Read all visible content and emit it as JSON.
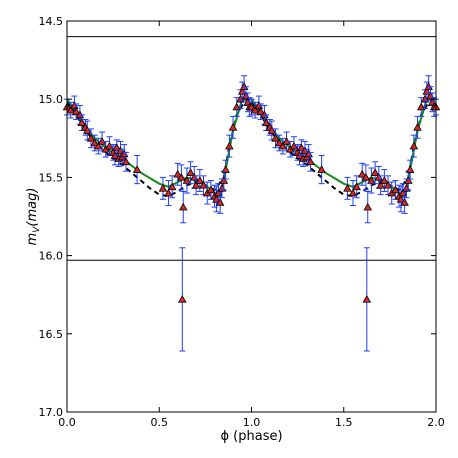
{
  "chart_data": {
    "type": "scatter",
    "xlabel": "ϕ (phase)",
    "ylabel_main": "m",
    "ylabel_sub": "V",
    "ylabel_paren": "(mag)",
    "xlim": [
      0.0,
      2.0
    ],
    "ylim": [
      14.5,
      17.0
    ],
    "y_inverted": true,
    "x_ticks": [
      "0.0",
      "0.5",
      "1.0",
      "1.5",
      "2.0"
    ],
    "x_tick_values": [
      0.0,
      0.5,
      1.0,
      1.5,
      2.0
    ],
    "y_ticks": [
      "14.5",
      "15.0",
      "15.5",
      "16.0",
      "16.5",
      "17.0"
    ],
    "y_tick_values": [
      14.5,
      15.0,
      15.5,
      16.0,
      16.5,
      17.0
    ],
    "hlines": [
      14.6,
      16.03
    ],
    "grid": false,
    "colors": {
      "marker_fill": "#d62728",
      "marker_edge": "#000000",
      "errorbar": "#1f3fff",
      "fit_line": "#1a8a1a",
      "model_line": "#000000"
    },
    "observations": {
      "x": [
        0.0,
        0.02,
        0.04,
        0.05,
        0.07,
        0.08,
        0.1,
        0.11,
        0.13,
        0.15,
        0.17,
        0.19,
        0.21,
        0.23,
        0.25,
        0.26,
        0.27,
        0.28,
        0.29,
        0.3,
        0.31,
        0.32,
        0.38,
        0.52,
        0.55,
        0.57,
        0.6,
        0.62,
        0.63,
        0.65,
        0.67,
        0.69,
        0.7,
        0.72,
        0.74,
        0.76,
        0.78,
        0.8,
        0.81,
        0.82,
        0.83,
        0.84,
        0.85,
        0.86,
        0.88,
        0.9,
        0.92,
        0.94,
        0.95,
        0.96,
        0.97,
        0.98,
        0.99,
        1.0
      ],
      "y": [
        15.05,
        15.07,
        15.04,
        15.08,
        15.1,
        15.15,
        15.18,
        15.2,
        15.25,
        15.28,
        15.3,
        15.27,
        15.32,
        15.3,
        15.34,
        15.36,
        15.31,
        15.38,
        15.33,
        15.37,
        15.35,
        15.4,
        15.45,
        15.57,
        15.6,
        15.56,
        15.48,
        15.5,
        15.69,
        15.52,
        15.47,
        15.5,
        15.55,
        15.52,
        15.55,
        15.6,
        15.58,
        15.62,
        15.64,
        15.6,
        15.66,
        15.57,
        15.52,
        15.45,
        15.3,
        15.18,
        15.05,
        15.0,
        14.95,
        14.92,
        14.98,
        15.02,
        15.05,
        15.05
      ],
      "err": [
        0.05,
        0.05,
        0.06,
        0.05,
        0.06,
        0.05,
        0.05,
        0.06,
        0.06,
        0.05,
        0.05,
        0.06,
        0.05,
        0.06,
        0.05,
        0.06,
        0.05,
        0.05,
        0.06,
        0.05,
        0.06,
        0.06,
        0.09,
        0.07,
        0.08,
        0.07,
        0.07,
        0.08,
        0.1,
        0.08,
        0.07,
        0.07,
        0.06,
        0.07,
        0.06,
        0.07,
        0.06,
        0.07,
        0.08,
        0.06,
        0.07,
        0.06,
        0.06,
        0.06,
        0.07,
        0.07,
        0.06,
        0.06,
        0.06,
        0.07,
        0.06,
        0.06,
        0.06,
        0.05
      ]
    },
    "outlier": {
      "x": 0.625,
      "y": 16.28,
      "err": 0.33
    },
    "fit_curve": {
      "x": [
        0.0,
        0.05,
        0.1,
        0.15,
        0.2,
        0.25,
        0.3,
        0.4,
        0.5,
        0.55,
        0.6,
        0.65,
        0.7,
        0.75,
        0.8,
        0.83,
        0.86,
        0.9,
        0.95,
        1.0
      ],
      "y": [
        15.0,
        15.08,
        15.17,
        15.25,
        15.3,
        15.34,
        15.38,
        15.47,
        15.54,
        15.56,
        15.53,
        15.5,
        15.52,
        15.55,
        15.6,
        15.62,
        15.45,
        15.2,
        15.0,
        15.0
      ]
    },
    "model_curve": {
      "x": [
        0.0,
        0.05,
        0.1,
        0.15,
        0.2,
        0.25,
        0.3,
        0.35,
        0.4,
        0.45,
        0.5,
        0.55,
        0.6,
        0.65,
        0.7,
        0.75,
        0.8,
        0.85,
        0.88,
        0.92,
        0.96,
        1.0
      ],
      "y": [
        15.02,
        15.1,
        15.2,
        15.27,
        15.33,
        15.38,
        15.42,
        15.47,
        15.52,
        15.57,
        15.61,
        15.62,
        15.59,
        15.55,
        15.53,
        15.55,
        15.58,
        15.5,
        15.3,
        15.1,
        15.02,
        15.02
      ]
    }
  }
}
